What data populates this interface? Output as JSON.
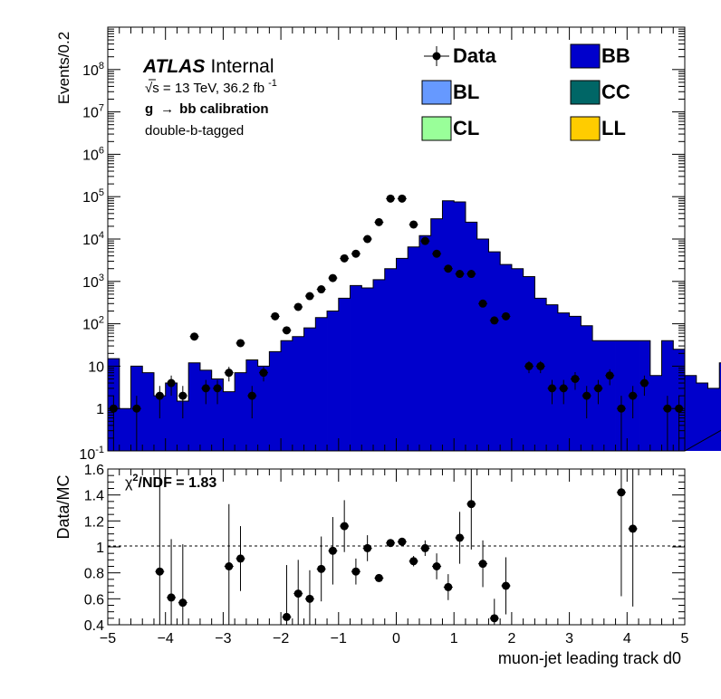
{
  "chart_data": [
    {
      "type": "bar",
      "panel": "main",
      "ylabel": "Events/0.2",
      "yscale": "log",
      "ylim": [
        0.1,
        1000000000
      ],
      "xlim": [
        -5,
        5
      ],
      "bin_width": 0.2,
      "y_tick_labels": [
        "10^-1",
        "1",
        "10",
        "10^2",
        "10^3",
        "10^4",
        "10^5",
        "10^6",
        "10^7",
        "10^8"
      ],
      "annotations": {
        "experiment": "ATLAS",
        "status": "Internal",
        "energy_sqrt": "s",
        "energy": " = 13 TeV, 36.2 fb",
        "lumi_exp": "-1",
        "calibration_g": "g",
        "calibration_arrow": "→",
        "calibration_rest": "bb calibration",
        "selection": "double-b-tagged"
      },
      "legend": [
        {
          "name": "Data",
          "style": "marker",
          "color": "#000000"
        },
        {
          "name": "BB",
          "style": "box",
          "color": "#0000cc"
        },
        {
          "name": "BL",
          "style": "box",
          "color": "#6699ff"
        },
        {
          "name": "CC",
          "style": "box",
          "color": "#006666"
        },
        {
          "name": "CL",
          "style": "box",
          "color": "#99ff99"
        },
        {
          "name": "LL",
          "style": "box",
          "color": "#ffcc00"
        }
      ],
      "mc_bb": [
        15,
        1,
        10,
        7,
        2,
        4,
        1.5,
        12,
        8,
        5,
        2.5,
        7,
        14,
        10,
        22,
        40,
        50,
        80,
        140,
        200,
        400,
        800,
        700,
        1100,
        2000,
        3500,
        6500,
        12000,
        30000,
        80000,
        75000,
        25000,
        10000,
        5000,
        2500,
        2000,
        1300,
        400,
        280,
        180,
        150,
        90,
        40,
        40,
        40,
        40,
        40,
        6,
        40,
        25,
        6,
        4,
        3,
        12,
        8,
        3.5,
        1,
        0.2,
        2,
        3.5
      ],
      "data_x": [
        -4.9,
        -4.5,
        -4.1,
        -3.9,
        -3.7,
        -3.5,
        -3.3,
        -3.1,
        -2.9,
        -2.7,
        -2.5,
        -2.3,
        -2.1,
        -1.9,
        -1.7,
        -1.5,
        -1.3,
        -1.1,
        -0.9,
        -0.7,
        -0.5,
        -0.3,
        -0.1,
        0.1,
        0.3,
        0.5,
        0.7,
        0.9,
        1.1,
        1.3,
        1.5,
        1.7,
        1.9,
        2.3,
        2.5,
        2.7,
        2.9,
        3.1,
        3.3,
        3.5,
        3.7,
        3.9,
        4.1,
        4.3,
        4.7,
        4.9
      ],
      "data_y": [
        1,
        1,
        2,
        4,
        2,
        50,
        3,
        3,
        7,
        35,
        2,
        7,
        150,
        70,
        250,
        450,
        650,
        1200,
        3500,
        4500,
        10000,
        25000,
        90000,
        90000,
        22000,
        9000,
        4500,
        2000,
        1500,
        1500,
        300,
        120,
        150,
        10,
        10,
        3,
        3,
        5,
        2,
        3,
        6,
        1,
        2,
        4,
        1,
        1
      ]
    },
    {
      "type": "scatter",
      "panel": "ratio",
      "ylabel": "Data/MC",
      "xlabel": "muon-jet leading track d0",
      "ylim": [
        0.4,
        1.6
      ],
      "xlim": [
        -5,
        5
      ],
      "x_tick_labels": [
        "−5",
        "−4",
        "−3",
        "−2",
        "−1",
        "0",
        "1",
        "2",
        "3",
        "4",
        "5"
      ],
      "y_tick_labels": [
        "0.4",
        "0.6",
        "0.8",
        "1",
        "1.2",
        "1.4",
        "1.6"
      ],
      "reference_line": 1,
      "annotation_chi": "χ",
      "annotation_exp": "2",
      "annotation_rest": "/NDF = 1.83",
      "points": [
        {
          "x": -4.1,
          "y": 0.81,
          "err": 0.8
        },
        {
          "x": -3.9,
          "y": 0.61,
          "err": 0.45
        },
        {
          "x": -3.7,
          "y": 0.57,
          "err": 0.45
        },
        {
          "x": -2.9,
          "y": 0.85,
          "err": 0.48
        },
        {
          "x": -2.7,
          "y": 0.91,
          "err": 0.25
        },
        {
          "x": -1.9,
          "y": 0.46,
          "err": 0.4
        },
        {
          "x": -1.7,
          "y": 0.64,
          "err": 0.26
        },
        {
          "x": -1.5,
          "y": 0.6,
          "err": 0.22
        },
        {
          "x": -1.3,
          "y": 0.83,
          "err": 0.25
        },
        {
          "x": -1.1,
          "y": 0.97,
          "err": 0.26
        },
        {
          "x": -0.9,
          "y": 1.16,
          "err": 0.2
        },
        {
          "x": -0.7,
          "y": 0.81,
          "err": 0.1
        },
        {
          "x": -0.5,
          "y": 0.99,
          "err": 0.1
        },
        {
          "x": -0.3,
          "y": 0.76,
          "err": 0.03
        },
        {
          "x": -0.1,
          "y": 1.03,
          "err": 0.02
        },
        {
          "x": 0.1,
          "y": 1.04,
          "err": 0.02
        },
        {
          "x": 0.3,
          "y": 0.89,
          "err": 0.04
        },
        {
          "x": 0.5,
          "y": 0.99,
          "err": 0.06
        },
        {
          "x": 0.7,
          "y": 0.85,
          "err": 0.1
        },
        {
          "x": 0.9,
          "y": 0.69,
          "err": 0.1
        },
        {
          "x": 1.1,
          "y": 1.07,
          "err": 0.2
        },
        {
          "x": 1.3,
          "y": 1.33,
          "err": 0.35
        },
        {
          "x": 1.5,
          "y": 0.87,
          "err": 0.18
        },
        {
          "x": 1.7,
          "y": 0.45,
          "err": 0.15
        },
        {
          "x": 1.9,
          "y": 0.7,
          "err": 0.22
        },
        {
          "x": 3.9,
          "y": 1.42,
          "err": 0.8
        },
        {
          "x": 4.1,
          "y": 1.14,
          "err": 0.6
        }
      ]
    }
  ]
}
